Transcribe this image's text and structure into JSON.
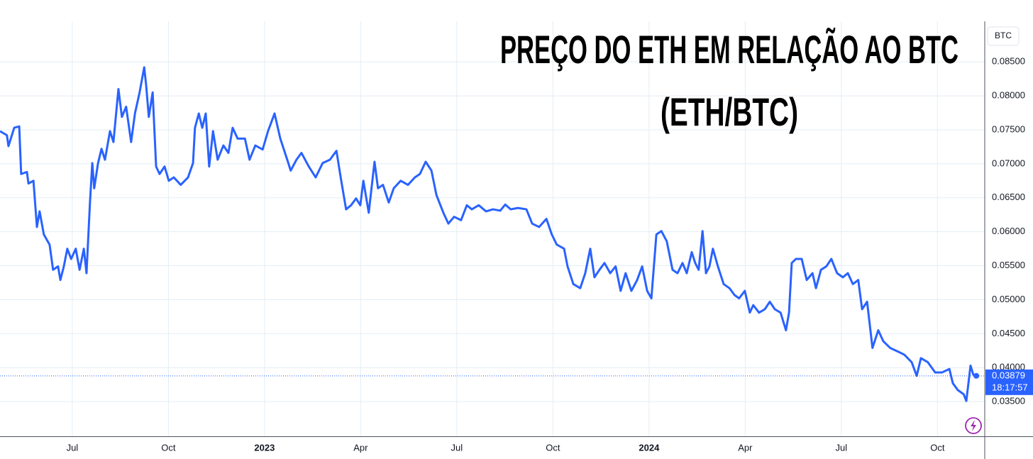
{
  "chart_data": {
    "type": "line",
    "title": "PREÇO DO ETH EM RELAÇÃO AO BTC",
    "subtitle": "(ETH/BTC)",
    "unit_label": "BTC",
    "color": "#2962ff",
    "grid": true,
    "xlim": [
      2022.312,
      2024.873
    ],
    "ylim": [
      0.0299,
      0.0941
    ],
    "xticks": [
      {
        "value": 2022.5,
        "label": "Jul"
      },
      {
        "value": 2022.75,
        "label": "Oct"
      },
      2023,
      {
        "value": 2023.25,
        "label": "Apr"
      },
      {
        "value": 2023.5,
        "label": "Jul"
      },
      {
        "value": 2023.75,
        "label": "Oct"
      },
      2024,
      {
        "value": 2024.25,
        "label": "Apr"
      },
      {
        "value": 2024.5,
        "label": "Jul"
      },
      {
        "value": 2024.75,
        "label": "Oct"
      }
    ],
    "yticks": [
      {
        "value": 0.035,
        "label": "0.03500"
      },
      {
        "value": 0.04,
        "label": "0.04000"
      },
      {
        "value": 0.045,
        "label": "0.04500"
      },
      {
        "value": 0.05,
        "label": "0.05000"
      },
      {
        "value": 0.055,
        "label": "0.05500"
      },
      {
        "value": 0.06,
        "label": "0.06000"
      },
      {
        "value": 0.065,
        "label": "0.06500"
      },
      {
        "value": 0.07,
        "label": "0.07000"
      },
      {
        "value": 0.075,
        "label": "0.07500"
      },
      {
        "value": 0.08,
        "label": "0.08000"
      },
      {
        "value": 0.085,
        "label": "0.08500"
      }
    ],
    "last_price": {
      "value": 0.03879,
      "label": "0.03879"
    },
    "countdown": "18:17:57",
    "x": [
      2022.312,
      2022.33,
      2022.334,
      2022.349,
      2022.362,
      2022.367,
      2022.382,
      2022.386,
      2022.399,
      2022.408,
      2022.415,
      2022.426,
      2022.441,
      2022.45,
      2022.463,
      2022.469,
      2022.478,
      2022.487,
      2022.497,
      2022.509,
      2022.519,
      2022.53,
      2022.537,
      2022.546,
      2022.552,
      2022.557,
      2022.567,
      2022.576,
      2022.585,
      2022.598,
      2022.607,
      2022.62,
      2022.629,
      2022.64,
      2022.653,
      2022.663,
      2022.675,
      2022.687,
      2022.692,
      2022.699,
      2022.709,
      2022.718,
      2022.727,
      2022.74,
      2022.751,
      2022.764,
      2022.782,
      2022.801,
      2022.814,
      2022.819,
      2022.829,
      2022.838,
      2022.847,
      2022.856,
      2022.866,
      2022.878,
      2022.893,
      2022.906,
      2022.917,
      2022.93,
      2022.949,
      2022.961,
      2022.976,
      2022.995,
      2023.009,
      2023.026,
      2023.041,
      2023.059,
      2023.068,
      2023.083,
      2023.096,
      2023.115,
      2023.133,
      2023.151,
      2023.17,
      2023.187,
      2023.198,
      2023.212,
      2023.225,
      2023.238,
      2023.249,
      2023.257,
      2023.271,
      2023.286,
      2023.295,
      2023.308,
      2023.323,
      2023.336,
      2023.354,
      2023.373,
      2023.391,
      2023.404,
      2023.419,
      2023.434,
      2023.447,
      2023.465,
      2023.478,
      2023.493,
      2023.511,
      2023.526,
      2023.539,
      2023.557,
      2023.576,
      2023.594,
      2023.613,
      2023.626,
      2023.64,
      2023.659,
      2023.681,
      2023.696,
      2023.714,
      2023.733,
      2023.747,
      2023.76,
      2023.779,
      2023.788,
      2023.803,
      2023.821,
      2023.834,
      2023.847,
      2023.858,
      2023.871,
      2023.884,
      2023.899,
      2023.913,
      2023.926,
      2023.939,
      2023.954,
      2023.969,
      2023.982,
      2023.995,
      2024.006,
      2024.019,
      2024.032,
      2024.046,
      2024.061,
      2024.074,
      2024.087,
      2024.098,
      2024.111,
      2024.12,
      2024.129,
      2024.139,
      2024.148,
      2024.157,
      2024.166,
      2024.179,
      2024.194,
      2024.209,
      2024.222,
      2024.234,
      2024.249,
      2024.262,
      2024.271,
      2024.286,
      2024.301,
      2024.314,
      2024.327,
      2024.342,
      2024.356,
      2024.364,
      2024.371,
      2024.382,
      2024.397,
      2024.41,
      2024.425,
      2024.434,
      2024.447,
      2024.461,
      2024.474,
      2024.489,
      2024.504,
      2024.517,
      2024.53,
      2024.544,
      2024.554,
      2024.567,
      2024.581,
      2024.596,
      2024.609,
      2024.627,
      2024.646,
      2024.664,
      2024.683,
      2024.696,
      2024.707,
      2024.725,
      2024.744,
      2024.762,
      2024.781,
      2024.79,
      2024.803,
      2024.818,
      2024.825,
      2024.836,
      2024.843,
      2024.851
    ],
    "values": [
      0.0748,
      0.0742,
      0.0726,
      0.0753,
      0.0755,
      0.0685,
      0.0688,
      0.0671,
      0.0675,
      0.0607,
      0.063,
      0.0596,
      0.0581,
      0.0544,
      0.0549,
      0.0529,
      0.0549,
      0.0575,
      0.056,
      0.0575,
      0.0544,
      0.0575,
      0.0539,
      0.0643,
      0.0701,
      0.0664,
      0.0701,
      0.0722,
      0.0706,
      0.0748,
      0.0732,
      0.081,
      0.0769,
      0.0784,
      0.0732,
      0.0774,
      0.0805,
      0.0842,
      0.0816,
      0.0769,
      0.0805,
      0.0696,
      0.0685,
      0.0696,
      0.0675,
      0.068,
      0.0669,
      0.068,
      0.0701,
      0.0753,
      0.0774,
      0.0753,
      0.0774,
      0.0696,
      0.0748,
      0.0706,
      0.0727,
      0.0716,
      0.0753,
      0.0737,
      0.0737,
      0.0706,
      0.0727,
      0.0721,
      0.0748,
      0.0774,
      0.0737,
      0.0706,
      0.069,
      0.0706,
      0.0716,
      0.0696,
      0.068,
      0.0701,
      0.0706,
      0.0719,
      0.068,
      0.0633,
      0.0639,
      0.0649,
      0.0639,
      0.0675,
      0.0628,
      0.0703,
      0.0664,
      0.0669,
      0.0643,
      0.0664,
      0.0675,
      0.0669,
      0.068,
      0.0685,
      0.0703,
      0.069,
      0.0654,
      0.0628,
      0.0612,
      0.0622,
      0.0617,
      0.0639,
      0.0633,
      0.0639,
      0.063,
      0.0633,
      0.0631,
      0.064,
      0.0633,
      0.0635,
      0.0633,
      0.0612,
      0.0607,
      0.0619,
      0.0596,
      0.0581,
      0.0575,
      0.0549,
      0.0523,
      0.0517,
      0.0539,
      0.0575,
      0.0533,
      0.0544,
      0.0554,
      0.0539,
      0.0549,
      0.0513,
      0.0539,
      0.0513,
      0.0529,
      0.0549,
      0.0513,
      0.0502,
      0.0596,
      0.0601,
      0.0586,
      0.0544,
      0.0539,
      0.0554,
      0.0539,
      0.057,
      0.0554,
      0.0544,
      0.0601,
      0.0539,
      0.0549,
      0.0575,
      0.0549,
      0.0523,
      0.0517,
      0.0507,
      0.0502,
      0.0513,
      0.0481,
      0.0492,
      0.0481,
      0.0486,
      0.0497,
      0.0486,
      0.0481,
      0.0455,
      0.0481,
      0.0554,
      0.056,
      0.056,
      0.0529,
      0.0539,
      0.0517,
      0.0544,
      0.0549,
      0.056,
      0.0539,
      0.0533,
      0.0539,
      0.0523,
      0.0529,
      0.0486,
      0.0497,
      0.0429,
      0.0455,
      0.0439,
      0.0429,
      0.0424,
      0.0419,
      0.0408,
      0.0388,
      0.0414,
      0.0408,
      0.0393,
      0.0393,
      0.0398,
      0.0377,
      0.0367,
      0.0361,
      0.0351,
      0.0403,
      0.039,
      0.0388
    ]
  }
}
